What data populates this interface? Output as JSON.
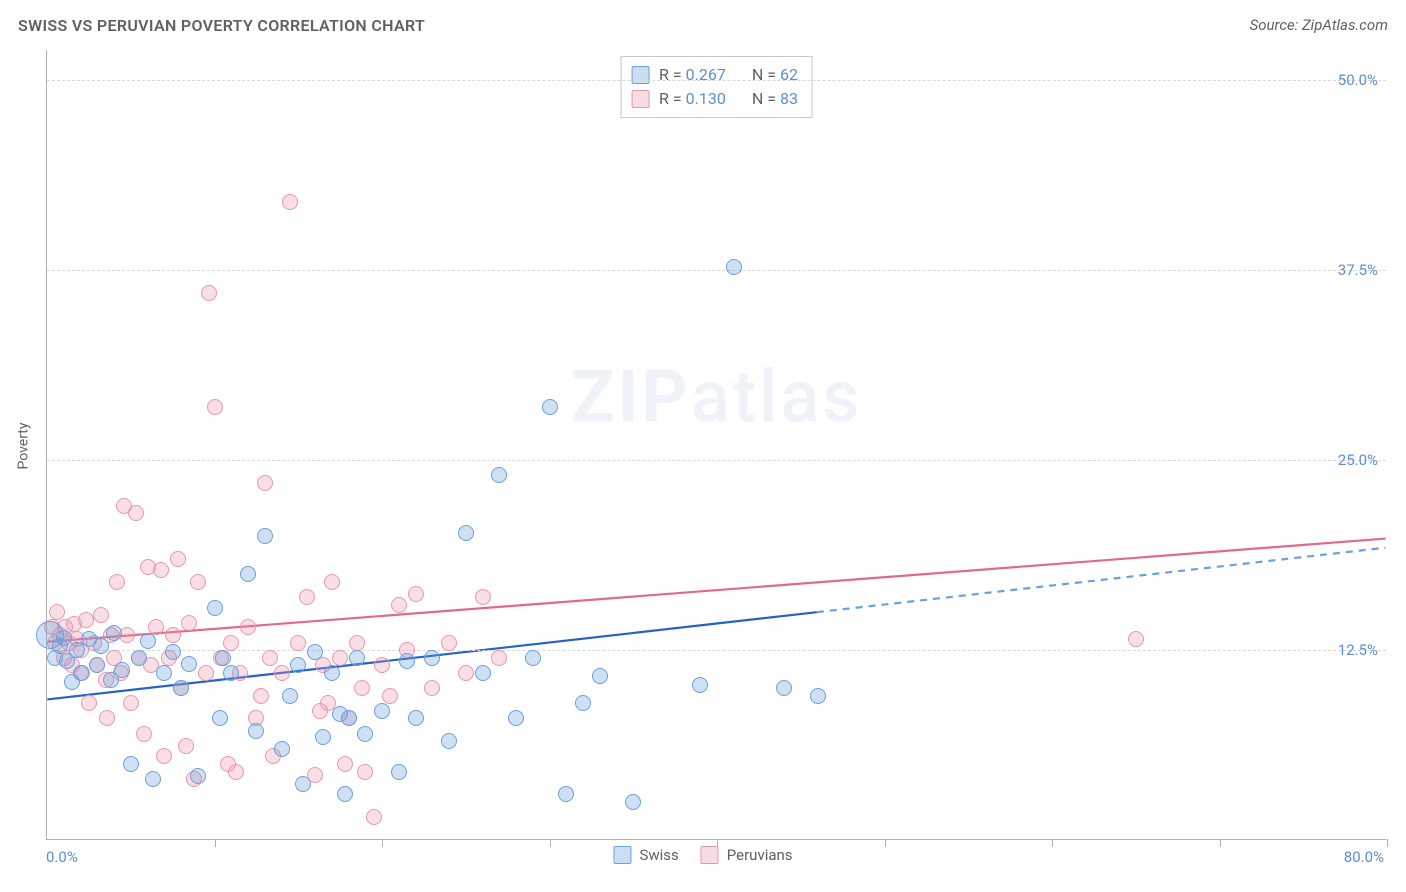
{
  "header": {
    "title": "SWISS VS PERUVIAN POVERTY CORRELATION CHART",
    "source": "Source: ZipAtlas.com"
  },
  "watermark": {
    "zip": "ZIP",
    "atlas": "atlas"
  },
  "yaxis": {
    "label": "Poverty"
  },
  "chart": {
    "type": "scatter",
    "xlim": [
      0,
      80
    ],
    "ylim": [
      0,
      52
    ],
    "xtick_step": 10,
    "xlabel_min": "0.0%",
    "xlabel_max": "80.0%",
    "yticks": [
      {
        "v": 12.5,
        "label": "12.5%"
      },
      {
        "v": 25.0,
        "label": "25.0%"
      },
      {
        "v": 37.5,
        "label": "37.5%"
      },
      {
        "v": 50.0,
        "label": "50.0%"
      }
    ],
    "background_color": "#ffffff",
    "grid_color": "#d8d8d8",
    "marker_radius": 8,
    "series": {
      "swiss": {
        "label": "Swiss",
        "color_fill": "rgba(106,160,222,0.32)",
        "color_stroke": "#6aa0de",
        "trend_color": "#2462c6",
        "trend_dash_color": "#6aa0de",
        "trend": {
          "x0": 0,
          "y0": 9.2,
          "x1": 80,
          "y1": 19.2,
          "solid_until_x": 46
        },
        "R": "0.267",
        "N": "62",
        "points": [
          {
            "x": 0.2,
            "y": 13.5,
            "r": 14
          },
          {
            "x": 0.5,
            "y": 12.0
          },
          {
            "x": 0.8,
            "y": 12.8
          },
          {
            "x": 1.0,
            "y": 13.3
          },
          {
            "x": 1.2,
            "y": 11.8
          },
          {
            "x": 1.5,
            "y": 10.4
          },
          {
            "x": 1.8,
            "y": 12.5
          },
          {
            "x": 2.0,
            "y": 11.0
          },
          {
            "x": 2.5,
            "y": 13.2
          },
          {
            "x": 3.0,
            "y": 11.5
          },
          {
            "x": 3.2,
            "y": 12.8
          },
          {
            "x": 3.8,
            "y": 10.5
          },
          {
            "x": 4.0,
            "y": 13.6
          },
          {
            "x": 4.5,
            "y": 11.2
          },
          {
            "x": 5.0,
            "y": 5.0
          },
          {
            "x": 5.5,
            "y": 12.0
          },
          {
            "x": 6.0,
            "y": 13.1
          },
          {
            "x": 6.3,
            "y": 4.0
          },
          {
            "x": 7.0,
            "y": 11.0
          },
          {
            "x": 7.5,
            "y": 12.4
          },
          {
            "x": 8.0,
            "y": 10.0
          },
          {
            "x": 8.5,
            "y": 11.6
          },
          {
            "x": 9.0,
            "y": 4.2
          },
          {
            "x": 10.0,
            "y": 15.3
          },
          {
            "x": 10.3,
            "y": 8.0
          },
          {
            "x": 10.5,
            "y": 12.0
          },
          {
            "x": 11.0,
            "y": 11.0
          },
          {
            "x": 12.0,
            "y": 17.5
          },
          {
            "x": 12.5,
            "y": 7.2
          },
          {
            "x": 13.0,
            "y": 20.0
          },
          {
            "x": 14.0,
            "y": 6.0
          },
          {
            "x": 14.5,
            "y": 9.5
          },
          {
            "x": 15.0,
            "y": 11.5
          },
          {
            "x": 15.3,
            "y": 3.7
          },
          {
            "x": 16.0,
            "y": 12.4
          },
          {
            "x": 16.5,
            "y": 6.8
          },
          {
            "x": 17.0,
            "y": 11.0
          },
          {
            "x": 17.5,
            "y": 8.3
          },
          {
            "x": 17.8,
            "y": 3.0
          },
          {
            "x": 18.0,
            "y": 8.0
          },
          {
            "x": 18.5,
            "y": 12.0
          },
          {
            "x": 19.0,
            "y": 7.0
          },
          {
            "x": 20.0,
            "y": 8.5
          },
          {
            "x": 21.0,
            "y": 4.5
          },
          {
            "x": 21.5,
            "y": 11.8
          },
          {
            "x": 22.0,
            "y": 8.0
          },
          {
            "x": 23.0,
            "y": 12.0
          },
          {
            "x": 24.0,
            "y": 6.5
          },
          {
            "x": 25.0,
            "y": 20.2
          },
          {
            "x": 26.0,
            "y": 11.0
          },
          {
            "x": 27.0,
            "y": 24.0
          },
          {
            "x": 28.0,
            "y": 8.0
          },
          {
            "x": 29.0,
            "y": 12.0
          },
          {
            "x": 30.0,
            "y": 28.5
          },
          {
            "x": 31.0,
            "y": 3.0
          },
          {
            "x": 32.0,
            "y": 9.0
          },
          {
            "x": 33.0,
            "y": 10.8
          },
          {
            "x": 35.0,
            "y": 2.5
          },
          {
            "x": 39.0,
            "y": 10.2
          },
          {
            "x": 41.0,
            "y": 37.7
          },
          {
            "x": 44.0,
            "y": 10.0
          },
          {
            "x": 46.0,
            "y": 9.5
          }
        ]
      },
      "peruvians": {
        "label": "Peruvians",
        "color_fill": "rgba(235,150,170,0.30)",
        "color_stroke": "#eb96aa",
        "trend_color": "#e06a88",
        "trend": {
          "x0": 0,
          "y0": 13.0,
          "x1": 80,
          "y1": 19.8,
          "solid_until_x": 80
        },
        "R": "0.130",
        "N": "83",
        "points": [
          {
            "x": 0.3,
            "y": 14.0
          },
          {
            "x": 0.5,
            "y": 13.0
          },
          {
            "x": 0.6,
            "y": 15.0
          },
          {
            "x": 0.8,
            "y": 13.5
          },
          {
            "x": 1.0,
            "y": 12.0
          },
          {
            "x": 1.1,
            "y": 14.0
          },
          {
            "x": 1.3,
            "y": 13.0
          },
          {
            "x": 1.5,
            "y": 11.5
          },
          {
            "x": 1.6,
            "y": 14.2
          },
          {
            "x": 1.8,
            "y": 13.2
          },
          {
            "x": 2.0,
            "y": 12.5
          },
          {
            "x": 2.1,
            "y": 11.0
          },
          {
            "x": 2.3,
            "y": 14.5
          },
          {
            "x": 2.5,
            "y": 9.0
          },
          {
            "x": 2.8,
            "y": 13.0
          },
          {
            "x": 3.0,
            "y": 11.5
          },
          {
            "x": 3.2,
            "y": 14.8
          },
          {
            "x": 3.5,
            "y": 10.5
          },
          {
            "x": 3.6,
            "y": 8.0
          },
          {
            "x": 3.8,
            "y": 13.5
          },
          {
            "x": 4.0,
            "y": 12.0
          },
          {
            "x": 4.2,
            "y": 17.0
          },
          {
            "x": 4.4,
            "y": 11.0
          },
          {
            "x": 4.6,
            "y": 22.0
          },
          {
            "x": 4.8,
            "y": 13.5
          },
          {
            "x": 5.0,
            "y": 9.0
          },
          {
            "x": 5.3,
            "y": 21.5
          },
          {
            "x": 5.5,
            "y": 12.0
          },
          {
            "x": 5.8,
            "y": 7.0
          },
          {
            "x": 6.0,
            "y": 18.0
          },
          {
            "x": 6.2,
            "y": 11.5
          },
          {
            "x": 6.5,
            "y": 14.0
          },
          {
            "x": 6.8,
            "y": 17.8
          },
          {
            "x": 7.0,
            "y": 5.5
          },
          {
            "x": 7.3,
            "y": 12.0
          },
          {
            "x": 7.5,
            "y": 13.5
          },
          {
            "x": 7.8,
            "y": 18.5
          },
          {
            "x": 8.0,
            "y": 10.0
          },
          {
            "x": 8.3,
            "y": 6.2
          },
          {
            "x": 8.5,
            "y": 14.3
          },
          {
            "x": 8.8,
            "y": 4.0
          },
          {
            "x": 9.0,
            "y": 17.0
          },
          {
            "x": 9.5,
            "y": 11.0
          },
          {
            "x": 9.7,
            "y": 36.0
          },
          {
            "x": 10.0,
            "y": 28.5
          },
          {
            "x": 10.4,
            "y": 12.0
          },
          {
            "x": 10.8,
            "y": 5.0
          },
          {
            "x": 11.0,
            "y": 13.0
          },
          {
            "x": 11.3,
            "y": 4.5
          },
          {
            "x": 11.5,
            "y": 11.0
          },
          {
            "x": 12.0,
            "y": 14.0
          },
          {
            "x": 12.5,
            "y": 8.0
          },
          {
            "x": 12.8,
            "y": 9.5
          },
          {
            "x": 13.0,
            "y": 23.5
          },
          {
            "x": 13.3,
            "y": 12.0
          },
          {
            "x": 13.5,
            "y": 5.5
          },
          {
            "x": 14.0,
            "y": 11.0
          },
          {
            "x": 14.5,
            "y": 42.0
          },
          {
            "x": 15.0,
            "y": 13.0
          },
          {
            "x": 15.5,
            "y": 16.0
          },
          {
            "x": 16.0,
            "y": 4.3
          },
          {
            "x": 16.3,
            "y": 8.5
          },
          {
            "x": 16.5,
            "y": 11.5
          },
          {
            "x": 16.8,
            "y": 9.0
          },
          {
            "x": 17.0,
            "y": 17.0
          },
          {
            "x": 17.5,
            "y": 12.0
          },
          {
            "x": 17.8,
            "y": 5.0
          },
          {
            "x": 18.0,
            "y": 8.0
          },
          {
            "x": 18.5,
            "y": 13.0
          },
          {
            "x": 18.8,
            "y": 10.0
          },
          {
            "x": 19.0,
            "y": 4.5
          },
          {
            "x": 19.5,
            "y": 1.5
          },
          {
            "x": 20.0,
            "y": 11.5
          },
          {
            "x": 20.5,
            "y": 9.5
          },
          {
            "x": 21.0,
            "y": 15.5
          },
          {
            "x": 21.5,
            "y": 12.5
          },
          {
            "x": 22.0,
            "y": 16.2
          },
          {
            "x": 23.0,
            "y": 10.0
          },
          {
            "x": 24.0,
            "y": 13.0
          },
          {
            "x": 25.0,
            "y": 11.0
          },
          {
            "x": 26.0,
            "y": 16.0
          },
          {
            "x": 27.0,
            "y": 12.0
          },
          {
            "x": 65.0,
            "y": 13.2
          }
        ]
      }
    }
  },
  "legend_bottom": {
    "swiss": "Swiss",
    "peruvians": "Peruvians"
  },
  "statbox": {
    "r_label": "R =",
    "n_label": "N =",
    "rows": [
      {
        "sw": "blue",
        "r": "0.267",
        "n": "62"
      },
      {
        "sw": "pink",
        "r": "0.130",
        "n": "83"
      }
    ]
  }
}
